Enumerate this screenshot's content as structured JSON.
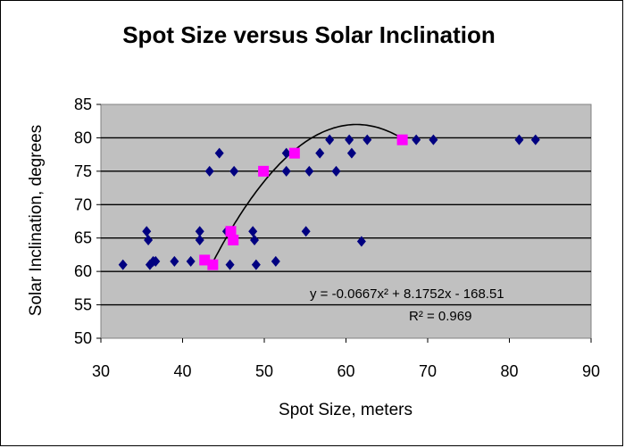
{
  "chart_data": {
    "type": "scatter",
    "title": "Spot Size versus Solar Inclination",
    "xlabel": "Spot Size, meters",
    "ylabel": "Solar Inclination, degrees",
    "xlim": [
      30,
      90
    ],
    "ylim": [
      50,
      85
    ],
    "xticks": [
      30,
      40,
      50,
      60,
      70,
      80,
      90
    ],
    "yticks": [
      50,
      55,
      60,
      65,
      70,
      75,
      80,
      85
    ],
    "grid": "horizontal",
    "plot_background": "#c0c0c0",
    "series": [
      {
        "marker": "diamond",
        "color": "#000080",
        "points": [
          [
            32.7,
            61
          ],
          [
            35.6,
            66
          ],
          [
            35.8,
            64.7
          ],
          [
            36.0,
            61
          ],
          [
            36.4,
            61.5
          ],
          [
            36.7,
            61.5
          ],
          [
            39.0,
            61.5
          ],
          [
            41.0,
            61.5
          ],
          [
            42.1,
            64.7
          ],
          [
            42.1,
            66
          ],
          [
            43.3,
            75
          ],
          [
            44.5,
            77.7
          ],
          [
            45.4,
            66
          ],
          [
            45.8,
            61
          ],
          [
            46.3,
            75
          ],
          [
            48.6,
            66
          ],
          [
            48.8,
            64.7
          ],
          [
            49.0,
            61
          ],
          [
            51.4,
            61.5
          ],
          [
            52.7,
            75
          ],
          [
            52.7,
            77.7
          ],
          [
            55.1,
            66
          ],
          [
            55.5,
            75
          ],
          [
            56.8,
            77.7
          ],
          [
            58.0,
            79.7
          ],
          [
            58.8,
            75
          ],
          [
            60.4,
            79.7
          ],
          [
            60.7,
            77.7
          ],
          [
            61.9,
            64.5
          ],
          [
            62.6,
            79.7
          ],
          [
            68.6,
            79.7
          ],
          [
            70.7,
            79.7
          ],
          [
            81.2,
            79.7
          ],
          [
            83.2,
            79.7
          ]
        ]
      },
      {
        "marker": "square",
        "color": "#ff00ff",
        "points": [
          [
            42.7,
            61.7
          ],
          [
            43.7,
            61
          ],
          [
            45.9,
            66
          ],
          [
            46.2,
            64.7
          ],
          [
            49.9,
            75
          ],
          [
            53.7,
            77.7
          ],
          [
            66.9,
            79.7
          ]
        ]
      }
    ],
    "trendline": {
      "type": "polynomial",
      "coefficients": [
        -0.0667,
        8.1752,
        -168.51
      ],
      "x_range": [
        43.8,
        66.9
      ],
      "color": "#000000"
    },
    "annotations": {
      "equation": "y = -0.0667x² + 8.1752x - 168.51",
      "r_squared": "R² = 0.969"
    }
  }
}
